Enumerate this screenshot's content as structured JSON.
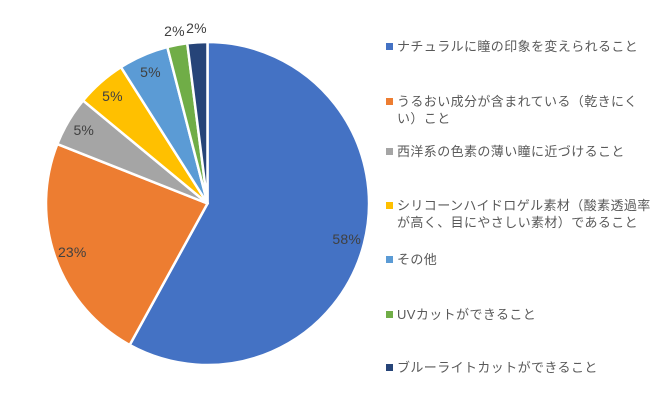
{
  "chart_data": {
    "type": "pie",
    "start_angle_deg": 0,
    "direction": "clockwise",
    "legend_position": "right",
    "background_color": "#ffffff",
    "slice_border_color": "#ffffff",
    "data_label_color": "#404040",
    "legend_text_color": "#595959",
    "slices": [
      {
        "name": "ナチュラルに瞳の印象を変えられること",
        "value": 58,
        "label": "58%",
        "color": "#4472C4"
      },
      {
        "name": "うるおい成分が含まれている（乾きにくい）こと",
        "value": 23,
        "label": "23%",
        "color": "#ED7D31"
      },
      {
        "name": "西洋系の色素の薄い瞳に近づけること",
        "value": 5,
        "label": "5%",
        "color": "#A5A5A5"
      },
      {
        "name": "シリコーンハイドロゲル素材（酸素透過率が高く、目にやさしい素材）であること",
        "value": 5,
        "label": "5%",
        "color": "#FFC000"
      },
      {
        "name": "その他",
        "value": 5,
        "label": "5%",
        "color": "#5B9BD5"
      },
      {
        "name": "UVカットができること",
        "value": 2,
        "label": "2%",
        "color": "#70AD47"
      },
      {
        "name": "ブルーライトカットができること",
        "value": 2,
        "label": "2%",
        "color": "#264478"
      }
    ]
  },
  "legend": {
    "items": [
      {
        "text": "ナチュラルに瞳の印象を変えられること"
      },
      {
        "text": "うるおい成分が含まれている（乾きにく\nい）こと"
      },
      {
        "text": "西洋系の色素の薄い瞳に近づけること"
      },
      {
        "text": "シリコーンハイドロゲル素材（酸素透過率\nが高く、目にやさしい素材）であること"
      },
      {
        "text": "その他"
      },
      {
        "text": "UVカットができること"
      },
      {
        "text": "ブルーライトカットができること"
      }
    ]
  }
}
